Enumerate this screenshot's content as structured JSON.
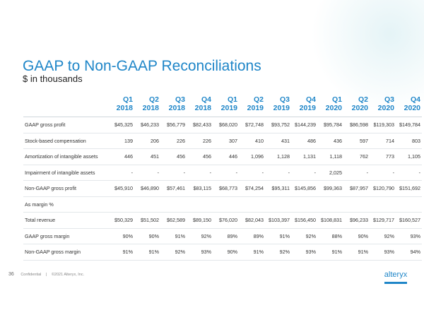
{
  "title": "GAAP to Non-GAAP Reconciliations",
  "subtitle": "$ in thousands",
  "table": {
    "headers": [
      [
        "Q1",
        "2018"
      ],
      [
        "Q2",
        "2018"
      ],
      [
        "Q3",
        "2018"
      ],
      [
        "Q4",
        "2018"
      ],
      [
        "Q1",
        "2019"
      ],
      [
        "Q2",
        "2019"
      ],
      [
        "Q3",
        "2019"
      ],
      [
        "Q4",
        "2019"
      ],
      [
        "Q1",
        "2020"
      ],
      [
        "Q2",
        "2020"
      ],
      [
        "Q3",
        "2020"
      ],
      [
        "Q4",
        "2020"
      ]
    ],
    "rows": [
      {
        "label": "GAAP gross profit",
        "values": [
          "$45,325",
          "$46,233",
          "$56,779",
          "$82,433",
          "$68,020",
          "$72,748",
          "$93,752",
          "$144,239",
          "$95,784",
          "$86,598",
          "$119,303",
          "$149,784"
        ]
      },
      {
        "label": "Stock-based compensation",
        "values": [
          "139",
          "206",
          "226",
          "226",
          "307",
          "410",
          "431",
          "486",
          "436",
          "597",
          "714",
          "803"
        ]
      },
      {
        "label": "Amortization of intangible assets",
        "values": [
          "446",
          "451",
          "456",
          "456",
          "446",
          "1,096",
          "1,128",
          "1,131",
          "1,118",
          "762",
          "773",
          "1,105"
        ]
      },
      {
        "label": "Impairment of intangible assets",
        "values": [
          "-",
          "-",
          "-",
          "-",
          "-",
          "-",
          "-",
          "-",
          "2,025",
          "-",
          "-",
          "-"
        ]
      },
      {
        "label": "Non-GAAP gross profit",
        "values": [
          "$45,910",
          "$46,890",
          "$57,461",
          "$83,115",
          "$68,773",
          "$74,254",
          "$95,311",
          "$145,856",
          "$99,363",
          "$87,957",
          "$120,790",
          "$151,692"
        ]
      },
      {
        "label": "As margin %",
        "values": [
          "",
          "",
          "",
          "",
          "",
          "",
          "",
          "",
          "",
          "",
          "",
          ""
        ]
      },
      {
        "label": "Total revenue",
        "values": [
          "$50,329",
          "$51,502",
          "$62,589",
          "$89,150",
          "$76,020",
          "$82,043",
          "$103,397",
          "$156,450",
          "$108,831",
          "$96,233",
          "$129,717",
          "$160,527"
        ]
      },
      {
        "label": "GAAP gross margin",
        "values": [
          "90%",
          "90%",
          "91%",
          "92%",
          "89%",
          "89%",
          "91%",
          "92%",
          "88%",
          "90%",
          "92%",
          "93%"
        ]
      },
      {
        "label": "Non-GAAP gross margin",
        "values": [
          "91%",
          "91%",
          "92%",
          "93%",
          "90%",
          "91%",
          "92%",
          "93%",
          "91%",
          "91%",
          "93%",
          "94%"
        ]
      }
    ]
  },
  "footer": {
    "page": "36",
    "confidential": "Confidential",
    "separator": "|",
    "copyright": "©2021 Alteryx, Inc."
  },
  "logo": {
    "text": "alteryx"
  },
  "colors": {
    "accent": "#1f86c8"
  }
}
